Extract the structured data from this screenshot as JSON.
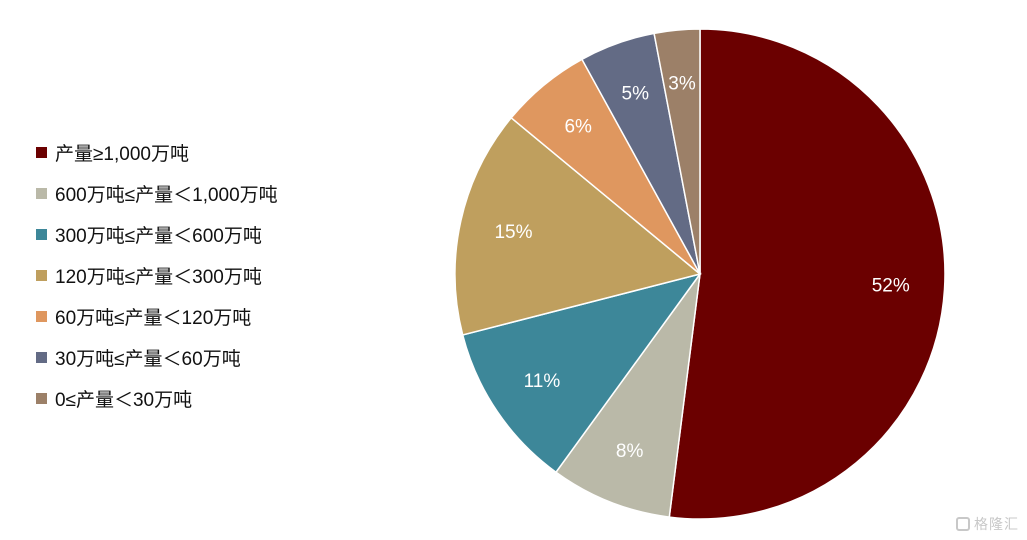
{
  "chart_data": {
    "type": "pie",
    "title": "",
    "legend_position": "left",
    "categories": [
      "产量≥1,000万吨",
      "600万吨≤产量＜1,000万吨",
      "300万吨≤产量＜600万吨",
      "120万吨≤产量＜300万吨",
      "60万吨≤产量＜120万吨",
      "30万吨≤产量＜60万吨",
      "0≤产量＜30万吨"
    ],
    "values": [
      52,
      8,
      11,
      15,
      6,
      5,
      3
    ],
    "data_labels": [
      "52%",
      "8%",
      "11%",
      "15%",
      "6%",
      "5%",
      "3%"
    ],
    "colors": [
      "#6b0000",
      "#bab9a8",
      "#3d8799",
      "#bf9f5e",
      "#df975f",
      "#636b85",
      "#9c8068"
    ]
  },
  "watermark": {
    "text": "格隆汇",
    "icon": "logo-icon"
  }
}
